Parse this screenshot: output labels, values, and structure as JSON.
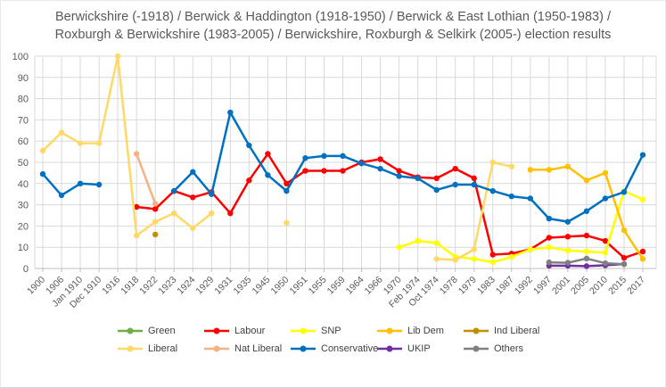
{
  "chart_data": {
    "type": "line",
    "title": "Berwickshire (-1918) / Berwick & Haddington (1918-1950) / Berwick & East Lothian (1950-1983) / Roxburgh & Berwickshire (1983-2005) / Berwickshire, Roxburgh & Selkirk (2005-) election results",
    "categories": [
      "1900",
      "1906",
      "Jan 1910",
      "Dec 1910",
      "1916",
      "1918",
      "1922",
      "1923",
      "1924",
      "1929",
      "1931",
      "1935",
      "1945",
      "1950",
      "1951",
      "1955",
      "1959",
      "1964",
      "1966",
      "1970",
      "Feb 1974",
      "Oct 1974",
      "1978",
      "1979",
      "1983",
      "1987",
      "1992",
      "1997",
      "2001",
      "2005",
      "2010",
      "2015",
      "2017"
    ],
    "ylim": [
      0,
      100
    ],
    "ytick_step": 10,
    "y_ticks": [
      0,
      10,
      20,
      30,
      40,
      50,
      60,
      70,
      80,
      90,
      100
    ],
    "grid": true,
    "legend_position": "bottom",
    "colors": {
      "grid": "#D9D9D9",
      "axis": "#BFBFBF",
      "text": "#595959",
      "title": "#595959",
      "background": "#FFFFFF"
    },
    "series": [
      {
        "name": "Green",
        "color": "#70AD47",
        "values": [
          null,
          null,
          null,
          null,
          null,
          null,
          null,
          null,
          null,
          null,
          null,
          null,
          null,
          null,
          null,
          null,
          null,
          null,
          null,
          null,
          null,
          null,
          null,
          null,
          null,
          null,
          null,
          null,
          null,
          null,
          null,
          null,
          null
        ]
      },
      {
        "name": "Labour",
        "color": "#FF0000",
        "values": [
          null,
          null,
          null,
          null,
          null,
          29,
          28,
          36.5,
          33.5,
          36,
          26,
          41.5,
          54,
          40,
          46,
          46,
          46,
          50,
          51.5,
          46,
          43,
          42.5,
          47,
          42.5,
          6.5,
          7,
          9,
          14.5,
          15,
          15.5,
          13,
          5,
          8
        ]
      },
      {
        "name": "SNP",
        "color": "#FFFF00",
        "values": [
          null,
          null,
          null,
          null,
          null,
          null,
          null,
          null,
          null,
          null,
          null,
          null,
          null,
          null,
          null,
          null,
          null,
          null,
          null,
          10,
          13,
          12,
          5.5,
          4.5,
          3,
          5.5,
          9,
          10,
          8.5,
          8,
          7.5,
          36.5,
          32.5
        ]
      },
      {
        "name": "Lib Dem",
        "color": "#FFC000",
        "values": [
          null,
          null,
          null,
          null,
          null,
          null,
          null,
          null,
          null,
          null,
          null,
          null,
          null,
          null,
          null,
          null,
          null,
          null,
          null,
          null,
          null,
          null,
          null,
          null,
          null,
          null,
          46.5,
          46.5,
          48,
          41.5,
          45,
          18,
          4.5
        ]
      },
      {
        "name": "Ind Liberal",
        "color": "#BF8F00",
        "values": [
          null,
          null,
          null,
          null,
          null,
          null,
          16,
          null,
          null,
          null,
          null,
          null,
          null,
          null,
          null,
          null,
          null,
          null,
          null,
          null,
          null,
          null,
          null,
          null,
          null,
          null,
          null,
          null,
          null,
          null,
          null,
          null,
          null
        ]
      },
      {
        "name": "Liberal",
        "color": "#FFD966",
        "values": [
          55.5,
          64,
          59,
          59,
          100,
          15.5,
          22,
          26,
          19,
          26,
          null,
          null,
          null,
          21.5,
          null,
          null,
          null,
          null,
          null,
          null,
          null,
          4.5,
          4,
          9,
          50,
          48,
          null,
          null,
          null,
          null,
          null,
          null,
          null
        ]
      },
      {
        "name": "Nat Liberal",
        "color": "#F4B183",
        "values": [
          null,
          null,
          null,
          null,
          null,
          54,
          30.5,
          null,
          null,
          null,
          null,
          null,
          null,
          null,
          null,
          null,
          null,
          null,
          null,
          null,
          null,
          null,
          null,
          null,
          null,
          null,
          null,
          null,
          null,
          null,
          null,
          null,
          null
        ]
      },
      {
        "name": "Conservative",
        "color": "#0070C0",
        "values": [
          44.5,
          34.5,
          40,
          39.5,
          null,
          null,
          null,
          36.5,
          45.5,
          35,
          73.5,
          58,
          44,
          36.5,
          52,
          53,
          53,
          49.5,
          47,
          43.5,
          42.5,
          37,
          39.5,
          39.5,
          36.5,
          34,
          33,
          23.5,
          22,
          27,
          33,
          36,
          53.5
        ]
      },
      {
        "name": "UKIP",
        "color": "#7030A0",
        "values": [
          null,
          null,
          null,
          null,
          null,
          null,
          null,
          null,
          null,
          null,
          null,
          null,
          null,
          null,
          null,
          null,
          null,
          null,
          null,
          null,
          null,
          null,
          null,
          null,
          null,
          null,
          null,
          1.3,
          1.3,
          1.1,
          1.5,
          2.1,
          null
        ]
      },
      {
        "name": "Others",
        "color": "#808080",
        "values": [
          null,
          null,
          null,
          null,
          null,
          null,
          null,
          null,
          null,
          null,
          null,
          null,
          null,
          null,
          null,
          null,
          null,
          null,
          null,
          null,
          null,
          null,
          null,
          null,
          null,
          null,
          null,
          2.9,
          2.7,
          4.7,
          2.5,
          2,
          null
        ]
      }
    ],
    "legend_rows": [
      [
        "Green",
        "Labour",
        "SNP",
        "Lib Dem",
        "Ind Liberal"
      ],
      [
        "Liberal",
        "Nat Liberal",
        "Conservative",
        "UKIP",
        "Others"
      ]
    ]
  }
}
